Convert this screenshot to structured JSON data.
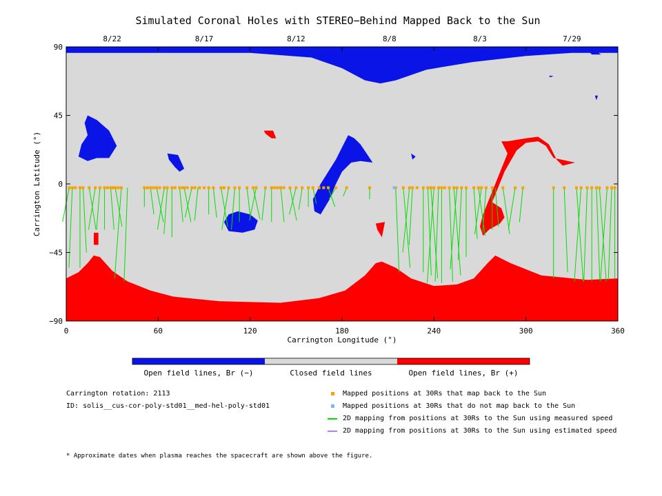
{
  "chart_data": {
    "type": "map",
    "title": "Simulated Coronal Holes with STEREO−Behind Mapped Back to the Sun",
    "xlabel": "Carrington Longitude (°)",
    "ylabel": "Carrington Latitude (°)",
    "xlim": [
      0,
      360
    ],
    "ylim": [
      -90,
      90
    ],
    "x_ticks": [
      "0",
      "60",
      "120",
      "180",
      "240",
      "300",
      "360"
    ],
    "y_ticks": [
      "90",
      "45",
      "0",
      "−45",
      "−90"
    ],
    "top_dates": [
      {
        "label": "8/22",
        "lon": 30
      },
      {
        "label": "8/17",
        "lon": 90
      },
      {
        "label": "8/12",
        "lon": 150
      },
      {
        "label": "8/8",
        "lon": 211
      },
      {
        "label": "8/3",
        "lon": 270
      },
      {
        "label": "7/29",
        "lon": 330
      }
    ],
    "colorbar": [
      {
        "label": "Open field lines, Br (−)",
        "color": "#0a14e6"
      },
      {
        "label": "Closed field lines",
        "color": "#d9d9d9"
      },
      {
        "label": "Open field lines, Br (+)",
        "color": "#ff0000"
      }
    ],
    "mapped_points_lat": -2.5,
    "mapped_longitudes": [
      2,
      4,
      6,
      9,
      11,
      15,
      19,
      22,
      25,
      27,
      29,
      30,
      31,
      32,
      34,
      36,
      51,
      53,
      55,
      57,
      59,
      61,
      64,
      66,
      69,
      71,
      74,
      76,
      77,
      79,
      82,
      84,
      87,
      90,
      93,
      96,
      101,
      103,
      106,
      110,
      113,
      118,
      122,
      124,
      130,
      134,
      136,
      138,
      140,
      142,
      146,
      150,
      154,
      158,
      161,
      165,
      168,
      171,
      176,
      183,
      198,
      215,
      220,
      224,
      226,
      229,
      233,
      236,
      238,
      240,
      243,
      245,
      247,
      250,
      253,
      255,
      258,
      261,
      266,
      269,
      271,
      274,
      278,
      285,
      293,
      298,
      318,
      325,
      333,
      336,
      340,
      343,
      346,
      348,
      353,
      356,
      358
    ],
    "unmapped_longitudes": [
      214
    ],
    "mapping_lines": [
      [
        2,
        -25
      ],
      [
        4,
        -55
      ],
      [
        9,
        -55
      ],
      [
        11,
        -45
      ],
      [
        15,
        -30
      ],
      [
        19,
        -30
      ],
      [
        22,
        -30
      ],
      [
        25,
        -30
      ],
      [
        29,
        -30
      ],
      [
        32,
        -28
      ],
      [
        36,
        -62
      ],
      [
        40,
        -64
      ],
      [
        51,
        -15
      ],
      [
        55,
        -20
      ],
      [
        59,
        -25
      ],
      [
        64,
        -30
      ],
      [
        66,
        -33
      ],
      [
        69,
        -35
      ],
      [
        74,
        -25
      ],
      [
        77,
        -25
      ],
      [
        82,
        -22
      ],
      [
        86,
        -24
      ],
      [
        93,
        -20
      ],
      [
        96,
        -22
      ],
      [
        101,
        -28
      ],
      [
        106,
        -30
      ],
      [
        110,
        -30
      ],
      [
        113,
        -25
      ],
      [
        118,
        -22
      ],
      [
        122,
        -23
      ],
      [
        124,
        -24
      ],
      [
        130,
        -24
      ],
      [
        134,
        -25
      ],
      [
        140,
        -25
      ],
      [
        146,
        -24
      ],
      [
        150,
        -20
      ],
      [
        154,
        -17
      ],
      [
        158,
        -15
      ],
      [
        161,
        -13
      ],
      [
        171,
        -15
      ],
      [
        176,
        -10
      ],
      [
        183,
        -8
      ],
      [
        198,
        -10
      ],
      [
        215,
        -58
      ],
      [
        220,
        -55
      ],
      [
        224,
        -45
      ],
      [
        226,
        -40
      ],
      [
        233,
        -58
      ],
      [
        236,
        -60
      ],
      [
        238,
        -62
      ],
      [
        240,
        -65
      ],
      [
        243,
        -64
      ],
      [
        245,
        -65
      ],
      [
        250,
        -64
      ],
      [
        253,
        -60
      ],
      [
        255,
        -56
      ],
      [
        258,
        -50
      ],
      [
        261,
        -48
      ],
      [
        266,
        -36
      ],
      [
        269,
        -34
      ],
      [
        271,
        -33
      ],
      [
        274,
        -32
      ],
      [
        278,
        -30
      ],
      [
        280,
        -28
      ],
      [
        285,
        -33
      ],
      [
        293,
        -30
      ],
      [
        298,
        -25
      ],
      [
        318,
        -62
      ],
      [
        325,
        -58
      ],
      [
        333,
        -64
      ],
      [
        336,
        -64
      ],
      [
        340,
        -64
      ],
      [
        343,
        -64
      ],
      [
        346,
        -63
      ],
      [
        348,
        -64
      ],
      [
        353,
        -64
      ],
      [
        356,
        -63
      ],
      [
        358,
        -62
      ]
    ],
    "info": {
      "rotation": "Carrington rotation: 2113",
      "id": "ID: solis__cus-cor-poly-std01__med-hel-poly-std01"
    },
    "legend": [
      {
        "label": "Mapped positions at 30Rs that map back to the Sun",
        "color": "#f7a200",
        "kind": "square"
      },
      {
        "label": "Mapped positions at 30Rs that do not map back to the Sun",
        "color": "#7fb3ff",
        "kind": "square"
      },
      {
        "label": "2D mapping from positions at 30Rs to the Sun using measured speed",
        "color": "#00e000",
        "kind": "line"
      },
      {
        "label": "2D mapping from positions at 30Rs to the Sun using estimated speed",
        "color": "#b07fff",
        "kind": "line"
      }
    ],
    "footnote": "* Approximate dates when plasma reaches the spacecraft are shown above the figure."
  }
}
